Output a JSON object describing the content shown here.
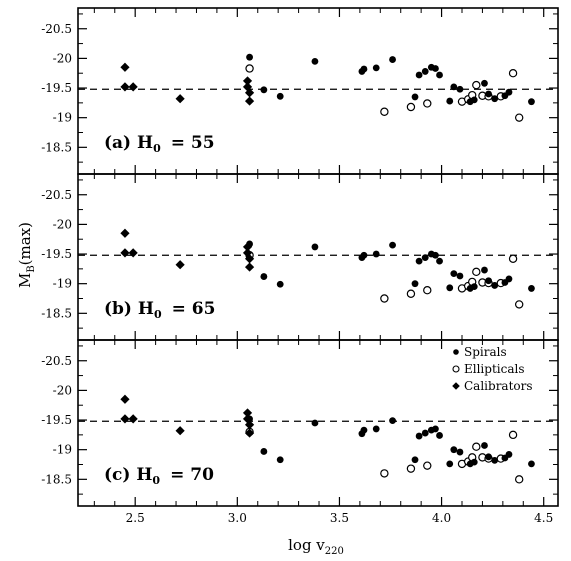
{
  "chart_data": {
    "type": "scatter",
    "xlabel_main": "log v",
    "xlabel_sub": "220",
    "ylabel_main": "M",
    "ylabel_sub": "B",
    "ylabel_suffix": "(max)",
    "xlim": [
      2.22,
      4.57
    ],
    "xticks": [
      2.5,
      3.0,
      3.5,
      4.0,
      4.5
    ],
    "xtick_labels": [
      "2.5",
      "3.0",
      "3.5",
      "4.0",
      "4.5"
    ],
    "y_inverted": true,
    "yticks": [
      -20.5,
      -20,
      -19.5,
      -19,
      -18.5
    ],
    "ytick_labels": [
      "-20.5",
      "-20",
      "-19.5",
      "-19",
      "-18.5"
    ],
    "legend": {
      "placement": "top-right of panel (c)",
      "entries": [
        {
          "label": "Spirals",
          "marker": "filled-circle"
        },
        {
          "label": "Ellipticals",
          "marker": "open-circle"
        },
        {
          "label": "Calibrators",
          "marker": "diamond"
        }
      ]
    },
    "panels": [
      {
        "label": "(a) H",
        "label_sub": "0",
        "label_value": "= 55",
        "ylim": [
          -18.05,
          -20.85
        ],
        "reference_line": -19.48,
        "series": {
          "spirals": [
            [
              3.06,
              -20.02
            ],
            [
              3.13,
              -19.47
            ],
            [
              3.21,
              -19.36
            ],
            [
              3.38,
              -19.95
            ],
            [
              3.61,
              -19.78
            ],
            [
              3.62,
              -19.82
            ],
            [
              3.68,
              -19.84
            ],
            [
              3.76,
              -19.98
            ],
            [
              3.87,
              -19.35
            ],
            [
              3.89,
              -19.72
            ],
            [
              3.92,
              -19.78
            ],
            [
              3.95,
              -19.85
            ],
            [
              3.97,
              -19.83
            ],
            [
              3.99,
              -19.72
            ],
            [
              4.04,
              -19.28
            ],
            [
              4.06,
              -19.52
            ],
            [
              4.09,
              -19.48
            ],
            [
              4.14,
              -19.27
            ],
            [
              4.16,
              -19.3
            ],
            [
              4.21,
              -19.58
            ],
            [
              4.23,
              -19.4
            ],
            [
              4.26,
              -19.32
            ],
            [
              4.31,
              -19.37
            ],
            [
              4.33,
              -19.43
            ],
            [
              4.44,
              -19.27
            ]
          ],
          "ellipticals": [
            [
              3.06,
              -19.83
            ],
            [
              3.72,
              -19.1
            ],
            [
              3.85,
              -19.18
            ],
            [
              3.93,
              -19.24
            ],
            [
              4.1,
              -19.27
            ],
            [
              4.13,
              -19.31
            ],
            [
              4.15,
              -19.38
            ],
            [
              4.17,
              -19.55
            ],
            [
              4.2,
              -19.37
            ],
            [
              4.23,
              -19.36
            ],
            [
              4.29,
              -19.36
            ],
            [
              4.35,
              -19.75
            ],
            [
              4.38,
              -19.0
            ]
          ],
          "calibrators": [
            [
              2.45,
              -19.85
            ],
            [
              2.45,
              -19.52
            ],
            [
              2.49,
              -19.52
            ],
            [
              2.72,
              -19.32
            ],
            [
              3.05,
              -19.62
            ],
            [
              3.05,
              -19.52
            ],
            [
              3.06,
              -19.42
            ],
            [
              3.06,
              -19.28
            ]
          ]
        }
      },
      {
        "label": "(b) H",
        "label_sub": "0",
        "label_value": "= 65",
        "ylim": [
          -18.05,
          -20.85
        ],
        "reference_line": -19.48,
        "series": {
          "spirals": [
            [
              3.06,
              -19.67
            ],
            [
              3.13,
              -19.12
            ],
            [
              3.21,
              -18.99
            ],
            [
              3.38,
              -19.62
            ],
            [
              3.61,
              -19.44
            ],
            [
              3.62,
              -19.48
            ],
            [
              3.68,
              -19.5
            ],
            [
              3.76,
              -19.65
            ],
            [
              3.87,
              -19.0
            ],
            [
              3.89,
              -19.38
            ],
            [
              3.92,
              -19.44
            ],
            [
              3.95,
              -19.5
            ],
            [
              3.97,
              -19.48
            ],
            [
              3.99,
              -19.38
            ],
            [
              4.04,
              -18.93
            ],
            [
              4.06,
              -19.17
            ],
            [
              4.09,
              -19.13
            ],
            [
              4.14,
              -18.92
            ],
            [
              4.16,
              -18.95
            ],
            [
              4.21,
              -19.23
            ],
            [
              4.23,
              -19.05
            ],
            [
              4.26,
              -18.97
            ],
            [
              4.31,
              -19.02
            ],
            [
              4.33,
              -19.08
            ],
            [
              4.44,
              -18.92
            ]
          ],
          "ellipticals": [
            [
              3.06,
              -19.48
            ],
            [
              3.72,
              -18.75
            ],
            [
              3.85,
              -18.83
            ],
            [
              3.93,
              -18.89
            ],
            [
              4.1,
              -18.92
            ],
            [
              4.13,
              -18.96
            ],
            [
              4.15,
              -19.03
            ],
            [
              4.17,
              -19.2
            ],
            [
              4.2,
              -19.02
            ],
            [
              4.23,
              -19.01
            ],
            [
              4.29,
              -19.01
            ],
            [
              4.35,
              -19.42
            ],
            [
              4.38,
              -18.65
            ]
          ],
          "calibrators": [
            [
              2.45,
              -19.85
            ],
            [
              2.45,
              -19.52
            ],
            [
              2.49,
              -19.52
            ],
            [
              2.72,
              -19.32
            ],
            [
              3.05,
              -19.62
            ],
            [
              3.05,
              -19.52
            ],
            [
              3.06,
              -19.42
            ],
            [
              3.06,
              -19.28
            ]
          ]
        }
      },
      {
        "label": "(c) H",
        "label_sub": "0",
        "label_value": "= 70",
        "ylim": [
          -18.05,
          -20.85
        ],
        "reference_line": -19.48,
        "series": {
          "spirals": [
            [
              3.06,
              -19.52
            ],
            [
              3.13,
              -18.97
            ],
            [
              3.21,
              -18.83
            ],
            [
              3.38,
              -19.45
            ],
            [
              3.61,
              -19.27
            ],
            [
              3.62,
              -19.33
            ],
            [
              3.68,
              -19.35
            ],
            [
              3.76,
              -19.49
            ],
            [
              3.87,
              -18.83
            ],
            [
              3.89,
              -19.23
            ],
            [
              3.92,
              -19.28
            ],
            [
              3.95,
              -19.33
            ],
            [
              3.97,
              -19.35
            ],
            [
              3.99,
              -19.24
            ],
            [
              4.04,
              -18.76
            ],
            [
              4.06,
              -19.0
            ],
            [
              4.09,
              -18.96
            ],
            [
              4.14,
              -18.76
            ],
            [
              4.16,
              -18.79
            ],
            [
              4.21,
              -19.07
            ],
            [
              4.23,
              -18.88
            ],
            [
              4.26,
              -18.82
            ],
            [
              4.31,
              -18.86
            ],
            [
              4.33,
              -18.92
            ],
            [
              4.44,
              -18.76
            ]
          ],
          "ellipticals": [
            [
              3.06,
              -19.3
            ],
            [
              3.72,
              -18.6
            ],
            [
              3.85,
              -18.68
            ],
            [
              3.93,
              -18.73
            ],
            [
              4.1,
              -18.76
            ],
            [
              4.13,
              -18.8
            ],
            [
              4.15,
              -18.87
            ],
            [
              4.17,
              -19.05
            ],
            [
              4.2,
              -18.87
            ],
            [
              4.23,
              -18.85
            ],
            [
              4.29,
              -18.85
            ],
            [
              4.35,
              -19.25
            ],
            [
              4.38,
              -18.5
            ]
          ],
          "calibrators": [
            [
              2.45,
              -19.85
            ],
            [
              2.45,
              -19.52
            ],
            [
              2.49,
              -19.52
            ],
            [
              2.72,
              -19.32
            ],
            [
              3.05,
              -19.62
            ],
            [
              3.05,
              -19.52
            ],
            [
              3.06,
              -19.42
            ],
            [
              3.06,
              -19.28
            ]
          ]
        }
      }
    ]
  }
}
